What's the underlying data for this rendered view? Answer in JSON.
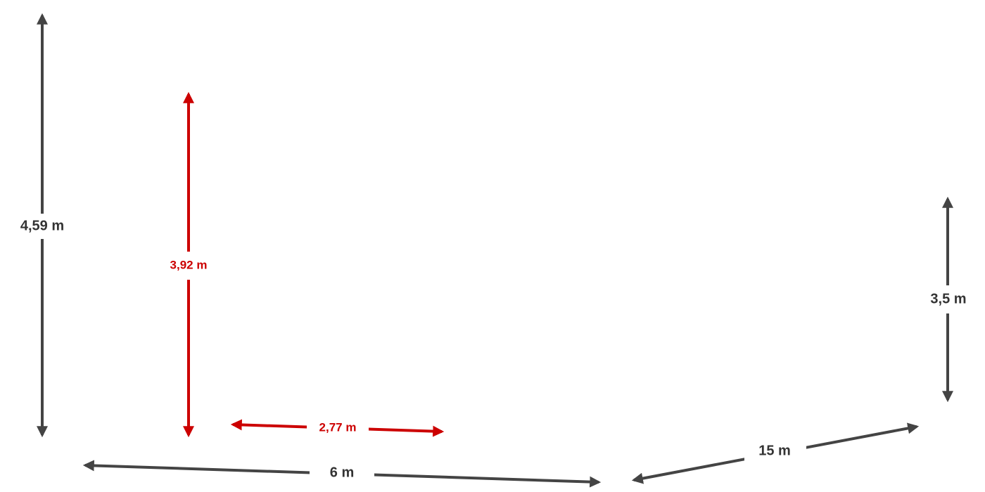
{
  "dimensions": [
    {
      "label": "4,59 m"
    },
    {
      "label": "3,92 m"
    },
    {
      "label": "2,77 m"
    },
    {
      "label": "6 m"
    },
    {
      "label": "15 m"
    },
    {
      "label": "3,5 m"
    }
  ]
}
